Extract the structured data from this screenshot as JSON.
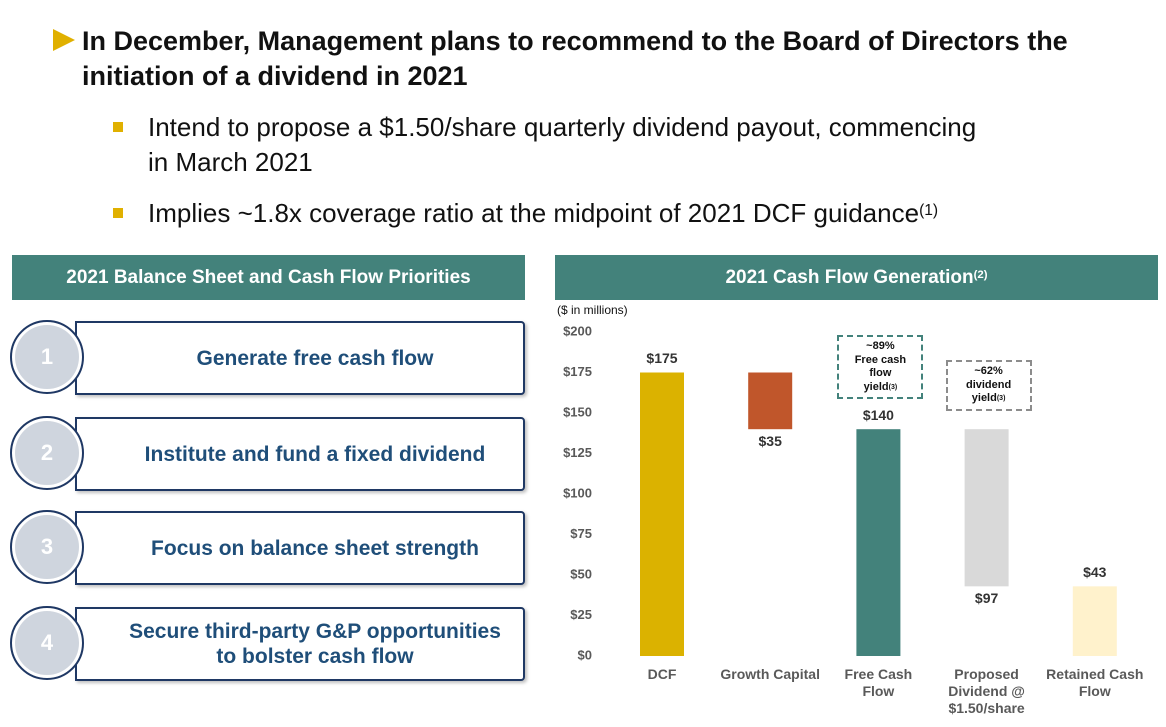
{
  "header": {
    "title": "In December, Management plans to recommend to the Board of Directors the initiation of a dividend in 2021",
    "bullets": [
      {
        "text": "Intend to propose a $1.50/share quarterly dividend payout, commencing in March 2021"
      },
      {
        "text": "Implies ~1.8x coverage ratio at the midpoint of 2021 DCF guidance",
        "note": "(1)"
      }
    ]
  },
  "priorities": {
    "title": "2021 Balance Sheet and Cash Flow Priorities",
    "items": [
      {
        "number": "1",
        "label": "Generate free cash flow"
      },
      {
        "number": "2",
        "label": "Institute and fund a fixed dividend"
      },
      {
        "number": "3",
        "label": "Focus on balance sheet strength"
      },
      {
        "number": "4",
        "label": "Secure third-party G&P opportunities to bolster cash flow"
      }
    ]
  },
  "chart_data": {
    "type": "waterfall",
    "title": "2021 Cash Flow Generation",
    "title_note": "(2)",
    "units": "($ in millions)",
    "categories": [
      "DCF",
      "Growth Capital",
      "Free Cash Flow",
      "Proposed Dividend @ $1.50/share",
      "Retained Cash Flow"
    ],
    "values": [
      175,
      35,
      140,
      97,
      43
    ],
    "value_labels": [
      "$175",
      "$35",
      "$140",
      "$97",
      "$43"
    ],
    "measures": [
      "total",
      "decrease",
      "total",
      "decrease",
      "total"
    ],
    "colors": [
      "#dbb200",
      "#c0562b",
      "#43827b",
      "#d9d9d9",
      "#fff2cc"
    ],
    "ylim": [
      0,
      200
    ],
    "yticks": [
      {
        "value": 0,
        "label": "$0"
      },
      {
        "value": 25,
        "label": "$25"
      },
      {
        "value": 50,
        "label": "$50"
      },
      {
        "value": 75,
        "label": "$75"
      },
      {
        "value": 100,
        "label": "$100"
      },
      {
        "value": 125,
        "label": "$125"
      },
      {
        "value": 150,
        "label": "$150"
      },
      {
        "value": 175,
        "label": "$175"
      },
      {
        "value": 200,
        "label": "$200"
      }
    ],
    "annotations": [
      {
        "lines": [
          "~89%",
          "Free cash",
          "flow",
          "yield"
        ],
        "note": "(3)"
      },
      {
        "lines": [
          "~62%",
          "dividend",
          "yield"
        ],
        "note": "(3)"
      }
    ]
  }
}
